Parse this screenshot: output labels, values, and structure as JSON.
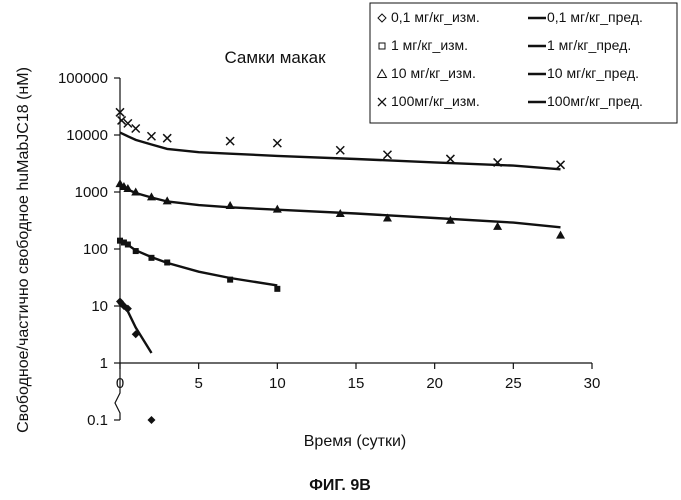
{
  "figure_caption": "ФИГ. 9В",
  "chart_data": {
    "type": "scatter",
    "title": "Самки макак",
    "xlabel": "Время (сутки)",
    "ylabel": "Свободное/частично свободное huMabJC18 (нМ)",
    "xlim": [
      0,
      30
    ],
    "ylim": [
      0.1,
      100000
    ],
    "yscale": "log",
    "x_ticks": [
      "0",
      "5",
      "10",
      "15",
      "20",
      "25",
      "30"
    ],
    "y_ticks": [
      "0.1",
      "1",
      "10",
      "100",
      "1000",
      "10000",
      "100000"
    ],
    "grid": false,
    "legend_position": "top-right",
    "series": [
      {
        "name": "0,1 мг/кг_изм.",
        "kind": "measured",
        "marker": "diamond",
        "points": [
          [
            0,
            12
          ],
          [
            0.1,
            11
          ],
          [
            0.25,
            10
          ],
          [
            0.5,
            9
          ],
          [
            1,
            3.2
          ],
          [
            2,
            0.1
          ]
        ]
      },
      {
        "name": "1 мг/кг_изм.",
        "kind": "measured",
        "marker": "square",
        "points": [
          [
            0,
            140
          ],
          [
            0.25,
            130
          ],
          [
            0.5,
            120
          ],
          [
            1,
            92
          ],
          [
            2,
            70
          ],
          [
            3,
            58
          ],
          [
            7,
            29
          ],
          [
            10,
            20
          ]
        ]
      },
      {
        "name": "10 мг/кг_изм.",
        "kind": "measured",
        "marker": "triangle",
        "points": [
          [
            0,
            1400
          ],
          [
            0.25,
            1250
          ],
          [
            0.5,
            1150
          ],
          [
            1,
            1000
          ],
          [
            2,
            820
          ],
          [
            3,
            700
          ],
          [
            7,
            580
          ],
          [
            10,
            500
          ],
          [
            14,
            420
          ],
          [
            17,
            350
          ],
          [
            21,
            320
          ],
          [
            24,
            250
          ],
          [
            28,
            175
          ]
        ]
      },
      {
        "name": "100мг/кг_изм.",
        "kind": "measured",
        "marker": "x",
        "points": [
          [
            0,
            25000
          ],
          [
            0.1,
            18000
          ],
          [
            0.5,
            16000
          ],
          [
            1,
            13000
          ],
          [
            2,
            9500
          ],
          [
            3,
            8800
          ],
          [
            7,
            7800
          ],
          [
            10,
            7200
          ],
          [
            14,
            5400
          ],
          [
            17,
            4500
          ],
          [
            21,
            3800
          ],
          [
            24,
            3300
          ],
          [
            28,
            3000
          ]
        ]
      },
      {
        "name": "0,1 мг/кг_пред.",
        "kind": "predicted",
        "points": [
          [
            0,
            11
          ],
          [
            0.5,
            8
          ],
          [
            1,
            4.2
          ],
          [
            1.5,
            2.5
          ],
          [
            2,
            1.5
          ]
        ]
      },
      {
        "name": "1 мг/кг_пред.",
        "kind": "predicted",
        "points": [
          [
            0,
            135
          ],
          [
            0.5,
            118
          ],
          [
            1,
            95
          ],
          [
            2,
            72
          ],
          [
            3,
            57
          ],
          [
            5,
            40
          ],
          [
            7,
            31
          ],
          [
            10,
            23
          ]
        ]
      },
      {
        "name": "10 мг/кг_пред.",
        "kind": "predicted",
        "points": [
          [
            0,
            1250
          ],
          [
            0.5,
            1100
          ],
          [
            1,
            960
          ],
          [
            2,
            800
          ],
          [
            3,
            680
          ],
          [
            5,
            590
          ],
          [
            7,
            540
          ],
          [
            10,
            490
          ],
          [
            15,
            420
          ],
          [
            20,
            350
          ],
          [
            25,
            290
          ],
          [
            28,
            240
          ]
        ]
      },
      {
        "name": "100мг/кг_пред.",
        "kind": "predicted",
        "points": [
          [
            0,
            11000
          ],
          [
            0.5,
            9500
          ],
          [
            1,
            8200
          ],
          [
            2,
            6800
          ],
          [
            3,
            5700
          ],
          [
            5,
            5000
          ],
          [
            7,
            4700
          ],
          [
            10,
            4300
          ],
          [
            15,
            3800
          ],
          [
            20,
            3300
          ],
          [
            25,
            2900
          ],
          [
            28,
            2500
          ]
        ]
      }
    ]
  }
}
